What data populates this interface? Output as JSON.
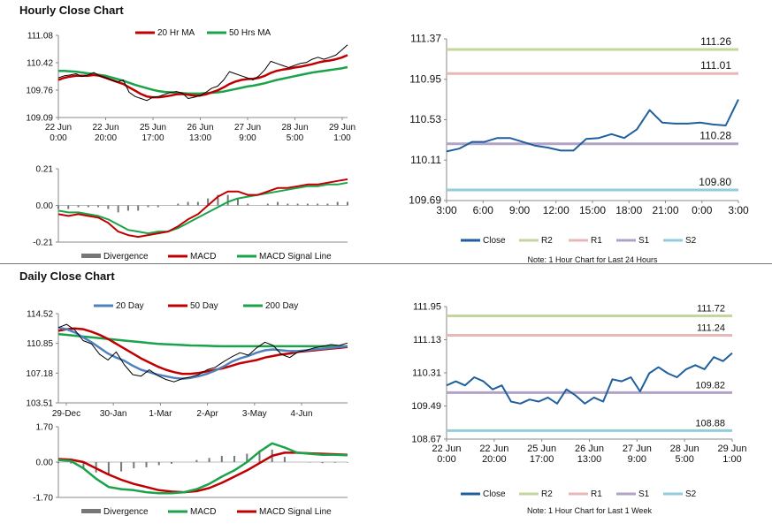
{
  "sections": {
    "hourly_title": "Hourly Close Chart",
    "daily_title": "Daily Close Chart"
  },
  "chart_data": [
    {
      "id": "hourly-price",
      "type": "line",
      "title": "",
      "legend": [
        "20 Hr MA",
        "50 Hrs MA"
      ],
      "colors": {
        "price": "#000000",
        "ma20": "#c00000",
        "ma50": "#1aa34a"
      },
      "y_ticks": [
        "111.08",
        "110.42",
        "109.76",
        "109.09"
      ],
      "ylim": [
        109.09,
        111.08
      ],
      "x_ticks": [
        [
          "22 Jun",
          "0:00"
        ],
        [
          "22 Jun",
          "20:00"
        ],
        [
          "25 Jun",
          "17:00"
        ],
        [
          "26 Jun",
          "13:00"
        ],
        [
          "27 Jun",
          "9:00"
        ],
        [
          "28 Jun",
          "5:00"
        ],
        [
          "29 Jun",
          "1:00"
        ]
      ],
      "series": [
        {
          "name": "Close",
          "values": [
            110.05,
            110.1,
            110.12,
            110.15,
            110.08,
            110.12,
            110.18,
            110.1,
            110.05,
            110.0,
            109.95,
            110.0,
            109.7,
            109.6,
            109.55,
            109.5,
            109.58,
            109.6,
            109.65,
            109.7,
            109.72,
            109.68,
            109.55,
            109.58,
            109.62,
            109.7,
            109.8,
            109.85,
            110.0,
            110.2,
            110.15,
            110.1,
            110.05,
            110.0,
            110.1,
            110.25,
            110.45,
            110.4,
            110.35,
            110.3,
            110.35,
            110.4,
            110.42,
            110.5,
            110.55,
            110.5,
            110.55,
            110.6,
            110.72,
            110.85
          ]
        },
        {
          "name": "20 Hr MA",
          "values": [
            110.0,
            110.05,
            110.08,
            110.1,
            110.1,
            110.1,
            110.12,
            110.1,
            110.05,
            110.0,
            109.95,
            109.9,
            109.82,
            109.74,
            109.66,
            109.6,
            109.58,
            109.58,
            109.6,
            109.62,
            109.65,
            109.66,
            109.64,
            109.62,
            109.62,
            109.65,
            109.7,
            109.75,
            109.82,
            109.9,
            109.96,
            110.0,
            110.02,
            110.03,
            110.05,
            110.1,
            110.17,
            110.22,
            110.25,
            110.27,
            110.3,
            110.32,
            110.35,
            110.38,
            110.42,
            110.45,
            110.47,
            110.5,
            110.54,
            110.6
          ]
        },
        {
          "name": "50 Hrs MA",
          "values": [
            110.22,
            110.22,
            110.21,
            110.2,
            110.18,
            110.16,
            110.14,
            110.12,
            110.1,
            110.06,
            110.02,
            109.98,
            109.93,
            109.88,
            109.84,
            109.8,
            109.76,
            109.73,
            109.71,
            109.7,
            109.69,
            109.68,
            109.67,
            109.67,
            109.67,
            109.68,
            109.69,
            109.7,
            109.72,
            109.75,
            109.78,
            109.81,
            109.84,
            109.86,
            109.89,
            109.92,
            109.96,
            110.0,
            110.03,
            110.06,
            110.09,
            110.12,
            110.15,
            110.18,
            110.2,
            110.22,
            110.24,
            110.26,
            110.28,
            110.31
          ]
        }
      ]
    },
    {
      "id": "hourly-macd",
      "type": "line",
      "legend": [
        "Divergence",
        "MACD",
        "MACD Signal Line"
      ],
      "colors": {
        "divergence": "#777777",
        "macd": "#c00000",
        "signal": "#1aa34a"
      },
      "y_ticks": [
        "0.21",
        "0.00",
        "-0.21"
      ],
      "ylim": [
        -0.21,
        0.21
      ],
      "series": [
        {
          "name": "MACD",
          "values": [
            -0.05,
            -0.06,
            -0.05,
            -0.06,
            -0.07,
            -0.1,
            -0.15,
            -0.17,
            -0.18,
            -0.17,
            -0.16,
            -0.15,
            -0.12,
            -0.08,
            -0.05,
            0.0,
            0.05,
            0.08,
            0.08,
            0.06,
            0.06,
            0.08,
            0.1,
            0.1,
            0.11,
            0.12,
            0.12,
            0.13,
            0.14,
            0.15
          ]
        },
        {
          "name": "MACD Signal Line",
          "values": [
            -0.03,
            -0.04,
            -0.04,
            -0.05,
            -0.06,
            -0.08,
            -0.11,
            -0.14,
            -0.15,
            -0.16,
            -0.15,
            -0.15,
            -0.13,
            -0.1,
            -0.07,
            -0.04,
            -0.01,
            0.02,
            0.04,
            0.05,
            0.06,
            0.07,
            0.08,
            0.09,
            0.1,
            0.11,
            0.11,
            0.12,
            0.12,
            0.13
          ]
        },
        {
          "name": "Divergence",
          "values": [
            -0.02,
            -0.02,
            -0.01,
            -0.01,
            -0.01,
            -0.02,
            -0.04,
            -0.03,
            -0.03,
            -0.01,
            -0.01,
            0.0,
            0.01,
            0.02,
            0.02,
            0.04,
            0.06,
            0.06,
            0.04,
            0.01,
            0.0,
            0.01,
            0.02,
            0.01,
            0.01,
            0.01,
            0.01,
            0.01,
            0.02,
            0.02
          ]
        }
      ]
    },
    {
      "id": "hourly-levels",
      "type": "line",
      "note": "Note: 1 Hour Chart for Last 24 Hours",
      "y_ticks": [
        "111.37",
        "110.95",
        "110.53",
        "110.11",
        "109.69"
      ],
      "ylim": [
        109.69,
        111.37
      ],
      "x_ticks": [
        "3:00",
        "6:00",
        "9:00",
        "12:00",
        "15:00",
        "18:00",
        "21:00",
        "0:00",
        "3:00"
      ],
      "legend": [
        "Close",
        "R2",
        "R1",
        "S1",
        "S2"
      ],
      "colors": {
        "close": "#1f5f9e",
        "r2": "#c3d69b",
        "r1": "#e6b9b8",
        "s1": "#b3a2c7",
        "s2": "#93cddd"
      },
      "levels": {
        "R2": 111.26,
        "R1": 111.01,
        "S1": 110.28,
        "S2": 109.8
      },
      "level_labels": {
        "R2": "111.26",
        "R1": "111.01",
        "S1": "110.28",
        "S2": "109.80"
      },
      "series": [
        {
          "name": "Close",
          "values": [
            110.2,
            110.23,
            110.3,
            110.3,
            110.34,
            110.34,
            110.3,
            110.26,
            110.24,
            110.21,
            110.21,
            110.33,
            110.34,
            110.38,
            110.34,
            110.43,
            110.63,
            110.5,
            110.49,
            110.49,
            110.5,
            110.48,
            110.47,
            110.74
          ]
        }
      ]
    },
    {
      "id": "daily-price",
      "type": "line",
      "legend": [
        "20 Day",
        "50 Day",
        "200 Day"
      ],
      "colors": {
        "price": "#000000",
        "ma20": "#4f81bd",
        "ma50": "#c00000",
        "ma200": "#1aa34a"
      },
      "y_ticks": [
        "114.52",
        "110.85",
        "107.18",
        "103.51"
      ],
      "ylim": [
        103.51,
        114.52
      ],
      "x_ticks": [
        "29-Dec",
        "30-Jan",
        "1-Mar",
        "2-Apr",
        "3-May",
        "4-Jun"
      ],
      "series": [
        {
          "name": "Close",
          "values": [
            112.8,
            113.2,
            112.5,
            111.2,
            110.8,
            109.5,
            108.8,
            109.8,
            108.2,
            107.0,
            106.8,
            107.6,
            106.9,
            106.4,
            106.1,
            106.5,
            106.7,
            107.0,
            107.6,
            107.9,
            108.6,
            109.2,
            109.7,
            109.4,
            110.3,
            111.0,
            110.6,
            109.5,
            109.1,
            109.8,
            110.0,
            110.3,
            110.5,
            110.7,
            110.6,
            110.9
          ]
        },
        {
          "name": "20 Day",
          "values": [
            112.8,
            112.6,
            112.2,
            111.6,
            111.0,
            110.3,
            109.6,
            109.1,
            108.7,
            108.1,
            107.6,
            107.3,
            107.0,
            106.8,
            106.6,
            106.5,
            106.6,
            106.8,
            107.1,
            107.5,
            108.0,
            108.6,
            109.0,
            109.3,
            109.7,
            110.0,
            110.1,
            110.0,
            109.9,
            109.9,
            110.0,
            110.1,
            110.2,
            110.3,
            110.4,
            110.5
          ]
        },
        {
          "name": "50 Day",
          "values": [
            112.4,
            112.6,
            112.7,
            112.6,
            112.3,
            111.9,
            111.4,
            110.8,
            110.2,
            109.6,
            109.0,
            108.5,
            108.0,
            107.6,
            107.3,
            107.1,
            107.1,
            107.2,
            107.4,
            107.6,
            107.8,
            108.1,
            108.4,
            108.6,
            108.8,
            109.1,
            109.3,
            109.5,
            109.6,
            109.8,
            109.9,
            110.0,
            110.1,
            110.2,
            110.3,
            110.4
          ]
        },
        {
          "name": "200 Day",
          "values": [
            112.0,
            111.9,
            111.8,
            111.7,
            111.6,
            111.5,
            111.4,
            111.3,
            111.2,
            111.1,
            111.0,
            110.9,
            110.8,
            110.75,
            110.7,
            110.65,
            110.6,
            110.58,
            110.55,
            110.52,
            110.5,
            110.5,
            110.5,
            110.5,
            110.5,
            110.5,
            110.5,
            110.5,
            110.5,
            110.5,
            110.5,
            110.5,
            110.5,
            110.5,
            110.5,
            110.5
          ]
        }
      ]
    },
    {
      "id": "daily-macd",
      "type": "line",
      "legend": [
        "Divergence",
        "MACD",
        "MACD Signal Line"
      ],
      "colors": {
        "divergence": "#777777",
        "macd": "#1aa34a",
        "signal": "#c00000"
      },
      "y_ticks": [
        "1.70",
        "0.00",
        "-1.70"
      ],
      "ylim": [
        -1.7,
        1.7
      ],
      "series": [
        {
          "name": "MACD",
          "values": [
            0.1,
            0.05,
            -0.3,
            -0.8,
            -1.2,
            -1.3,
            -1.35,
            -1.45,
            -1.5,
            -1.5,
            -1.45,
            -1.3,
            -1.05,
            -0.7,
            -0.4,
            0.0,
            0.5,
            0.9,
            0.7,
            0.45,
            0.4,
            0.35,
            0.35,
            0.33
          ]
        },
        {
          "name": "MACD Signal Line",
          "values": [
            0.15,
            0.12,
            0.0,
            -0.3,
            -0.6,
            -0.85,
            -1.05,
            -1.2,
            -1.35,
            -1.42,
            -1.45,
            -1.4,
            -1.25,
            -1.0,
            -0.7,
            -0.4,
            -0.05,
            0.3,
            0.45,
            0.45,
            0.42,
            0.4,
            0.38,
            0.35
          ]
        },
        {
          "name": "Divergence",
          "values": [
            -0.05,
            -0.07,
            -0.3,
            -0.5,
            -0.6,
            -0.45,
            -0.3,
            -0.25,
            -0.15,
            -0.08,
            0.0,
            0.1,
            0.2,
            0.3,
            0.3,
            0.4,
            0.55,
            0.6,
            0.25,
            0.0,
            -0.02,
            -0.05,
            -0.03,
            -0.02
          ]
        }
      ]
    },
    {
      "id": "daily-levels",
      "type": "line",
      "note": "Note: 1 Hour Chart for Last 1 Week",
      "y_ticks": [
        "111.95",
        "111.13",
        "110.31",
        "109.49",
        "108.67"
      ],
      "ylim": [
        108.67,
        111.95
      ],
      "x_ticks": [
        [
          "22 Jun",
          "0:00"
        ],
        [
          "22 Jun",
          "20:00"
        ],
        [
          "25 Jun",
          "17:00"
        ],
        [
          "26 Jun",
          "13:00"
        ],
        [
          "27 Jun",
          "9:00"
        ],
        [
          "28 Jun",
          "5:00"
        ],
        [
          "29 Jun",
          "1:00"
        ]
      ],
      "legend": [
        "Close",
        "R2",
        "R1",
        "S1",
        "S2"
      ],
      "colors": {
        "close": "#1f5f9e",
        "r2": "#c3d69b",
        "r1": "#e6b9b8",
        "s1": "#b3a2c7",
        "s2": "#93cddd"
      },
      "levels": {
        "R2": 111.72,
        "R1": 111.24,
        "S1": 109.82,
        "S2": 108.88
      },
      "level_labels": {
        "R2": "111.72",
        "R1": "111.24",
        "S1": "109.82",
        "S2": "108.88"
      },
      "series": [
        {
          "name": "Close",
          "values": [
            110.0,
            110.1,
            110.0,
            110.2,
            110.1,
            109.9,
            110.0,
            109.6,
            109.55,
            109.65,
            109.6,
            109.7,
            109.55,
            109.9,
            109.75,
            109.55,
            109.7,
            109.6,
            110.15,
            110.1,
            110.2,
            109.85,
            110.3,
            110.45,
            110.3,
            110.2,
            110.4,
            110.5,
            110.4,
            110.7,
            110.6,
            110.8
          ]
        }
      ]
    }
  ]
}
